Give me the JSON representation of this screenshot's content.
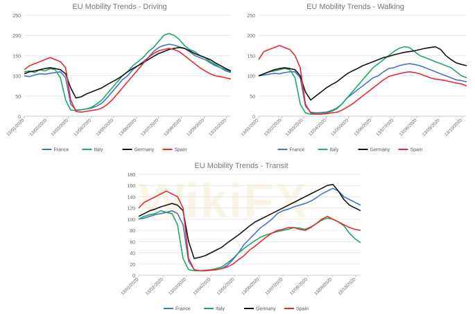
{
  "watermark": "WikiFX",
  "chart_data": [
    {
      "type": "line",
      "title": "EU Mobility Trends - Driving",
      "x": [
        "13/01/2020",
        "20/01/2020",
        "27/01/2020",
        "03/02/2020",
        "10/02/2020",
        "17/02/2020",
        "24/02/2020",
        "02/03/2020",
        "09/03/2020",
        "16/03/2020",
        "23/03/2020",
        "30/03/2020",
        "06/04/2020",
        "13/04/2020",
        "20/04/2020",
        "27/04/2020",
        "04/05/2020",
        "11/05/2020",
        "18/05/2020",
        "25/05/2020",
        "01/06/2020",
        "08/06/2020",
        "15/06/2020",
        "22/06/2020",
        "29/06/2020",
        "06/07/2020",
        "13/07/2020",
        "20/07/2020",
        "27/07/2020",
        "03/08/2020",
        "10/08/2020",
        "17/08/2020",
        "24/08/2020",
        "31/08/2020",
        "07/09/2020",
        "14/09/2020",
        "21/09/2020",
        "28/09/2020",
        "05/10/2020",
        "12/10/2020",
        "19/10/2020"
      ],
      "xlim": [
        "13/01/2020",
        "19/10/2020"
      ],
      "xticks": [
        "13/01/2020",
        "13/02/2020",
        "13/03/2020",
        "13/04/2020",
        "13/05/2020",
        "13/06/2020",
        "13/07/2020",
        "13/08/2020",
        "13/09/2020",
        "13/10/2020"
      ],
      "ylim": [
        0,
        250
      ],
      "yticks": [
        0,
        50,
        100,
        150,
        200,
        250
      ],
      "grid": true,
      "legend": "bottom",
      "series": [
        {
          "name": "France",
          "color": "#4472c4",
          "values": [
            100,
            98,
            102,
            105,
            104,
            106,
            108,
            110,
            95,
            30,
            15,
            16,
            18,
            20,
            25,
            32,
            45,
            60,
            75,
            90,
            100,
            115,
            125,
            135,
            145,
            160,
            170,
            175,
            178,
            176,
            172,
            168,
            160,
            150,
            145,
            140,
            132,
            125,
            120,
            112,
            108
          ]
        },
        {
          "name": "Italy",
          "color": "#1aa866",
          "values": [
            110,
            112,
            108,
            115,
            112,
            118,
            115,
            95,
            40,
            15,
            14,
            16,
            18,
            22,
            30,
            40,
            55,
            70,
            85,
            100,
            110,
            125,
            135,
            145,
            160,
            170,
            185,
            200,
            205,
            200,
            190,
            175,
            165,
            160,
            150,
            145,
            135,
            128,
            120,
            115,
            110
          ]
        },
        {
          "name": "Germany",
          "color": "#111111",
          "values": [
            105,
            110,
            112,
            115,
            118,
            120,
            118,
            115,
            105,
            70,
            45,
            48,
            55,
            60,
            65,
            70,
            78,
            85,
            92,
            100,
            110,
            118,
            125,
            132,
            140,
            148,
            155,
            160,
            165,
            168,
            170,
            168,
            162,
            155,
            150,
            145,
            140,
            132,
            125,
            118,
            112
          ]
        },
        {
          "name": "Spain",
          "color": "#e8282e",
          "values": [
            115,
            125,
            130,
            135,
            140,
            145,
            140,
            135,
            120,
            40,
            12,
            10,
            12,
            14,
            16,
            20,
            28,
            40,
            55,
            70,
            85,
            100,
            115,
            130,
            145,
            155,
            162,
            165,
            168,
            165,
            160,
            150,
            140,
            130,
            120,
            112,
            105,
            100,
            98,
            95,
            92
          ]
        }
      ]
    },
    {
      "type": "line",
      "title": "EU Mobility Trends - Walking",
      "x": [
        "13/01/2020",
        "20/01/2020",
        "27/01/2020",
        "03/02/2020",
        "10/02/2020",
        "17/02/2020",
        "24/02/2020",
        "02/03/2020",
        "09/03/2020",
        "16/03/2020",
        "23/03/2020",
        "30/03/2020",
        "06/04/2020",
        "13/04/2020",
        "20/04/2020",
        "27/04/2020",
        "04/05/2020",
        "11/05/2020",
        "18/05/2020",
        "25/05/2020",
        "01/06/2020",
        "08/06/2020",
        "15/06/2020",
        "22/06/2020",
        "29/06/2020",
        "06/07/2020",
        "13/07/2020",
        "20/07/2020",
        "27/07/2020",
        "03/08/2020",
        "10/08/2020",
        "17/08/2020",
        "24/08/2020",
        "31/08/2020",
        "07/09/2020",
        "14/09/2020",
        "21/09/2020",
        "28/09/2020",
        "05/10/2020",
        "12/10/2020",
        "19/10/2020"
      ],
      "xlim": [
        "13/01/2020",
        "19/10/2020"
      ],
      "xticks": [
        "13/01/2020",
        "13/02/2020",
        "13/03/2020",
        "13/04/2020",
        "13/05/2020",
        "13/06/2020",
        "13/07/2020",
        "13/08/2020",
        "13/09/2020",
        "13/10/2020"
      ],
      "ylim": [
        0,
        250
      ],
      "yticks": [
        0,
        50,
        100,
        150,
        200,
        250
      ],
      "grid": true,
      "legend": "bottom",
      "series": [
        {
          "name": "France",
          "color": "#4472c4",
          "values": [
            100,
            102,
            104,
            106,
            105,
            108,
            110,
            110,
            95,
            25,
            10,
            8,
            9,
            10,
            14,
            20,
            30,
            45,
            55,
            65,
            75,
            85,
            95,
            100,
            110,
            118,
            120,
            125,
            128,
            130,
            128,
            125,
            120,
            115,
            110,
            105,
            100,
            95,
            90,
            88,
            85
          ]
        },
        {
          "name": "Italy",
          "color": "#1aa866",
          "values": [
            100,
            105,
            110,
            112,
            115,
            118,
            115,
            95,
            30,
            8,
            5,
            5,
            6,
            8,
            12,
            18,
            30,
            45,
            60,
            75,
            90,
            105,
            120,
            130,
            140,
            150,
            160,
            168,
            172,
            170,
            160,
            150,
            145,
            140,
            135,
            130,
            125,
            120,
            110,
            100,
            95
          ]
        },
        {
          "name": "Germany",
          "color": "#111111",
          "values": [
            100,
            105,
            110,
            115,
            118,
            120,
            118,
            115,
            100,
            60,
            40,
            50,
            60,
            70,
            78,
            85,
            95,
            105,
            112,
            118,
            125,
            130,
            135,
            140,
            145,
            148,
            152,
            155,
            158,
            160,
            162,
            165,
            168,
            170,
            172,
            165,
            150,
            140,
            132,
            128,
            125
          ]
        },
        {
          "name": "Spain",
          "color": "#e8282e",
          "values": [
            140,
            160,
            165,
            170,
            175,
            170,
            165,
            150,
            120,
            30,
            8,
            5,
            5,
            6,
            8,
            10,
            15,
            22,
            30,
            40,
            50,
            60,
            70,
            80,
            90,
            98,
            102,
            105,
            108,
            110,
            108,
            105,
            100,
            95,
            92,
            90,
            88,
            85,
            82,
            80,
            75
          ]
        }
      ]
    },
    {
      "type": "line",
      "title": "EU Mobility Trends - Transit",
      "x": [
        "13/01/2020",
        "20/01/2020",
        "27/01/2020",
        "03/02/2020",
        "10/02/2020",
        "17/02/2020",
        "24/02/2020",
        "02/03/2020",
        "09/03/2020",
        "16/03/2020",
        "23/03/2020",
        "30/03/2020",
        "06/04/2020",
        "13/04/2020",
        "20/04/2020",
        "27/04/2020",
        "04/05/2020",
        "11/05/2020",
        "18/05/2020",
        "25/05/2020",
        "01/06/2020",
        "08/06/2020",
        "15/06/2020",
        "22/06/2020",
        "29/06/2020",
        "06/07/2020",
        "13/07/2020",
        "20/07/2020",
        "27/07/2020",
        "03/08/2020",
        "10/08/2020",
        "17/08/2020",
        "24/08/2020",
        "31/08/2020",
        "07/09/2020",
        "14/09/2020",
        "21/09/2020",
        "28/09/2020",
        "05/10/2020",
        "12/10/2020",
        "19/10/2020"
      ],
      "xlim": [
        "13/01/2020",
        "19/10/2020"
      ],
      "xticks": [
        "13/01/2020",
        "13/02/2020",
        "13/03/2020",
        "13/04/2020",
        "13/05/2020",
        "13/06/2020",
        "13/07/2020",
        "13/08/2020",
        "13/09/2020",
        "13/10/2020"
      ],
      "ylim": [
        0,
        180
      ],
      "yticks": [
        0,
        20,
        40,
        60,
        80,
        100,
        120,
        140,
        160,
        180
      ],
      "grid": true,
      "legend": "bottom",
      "series": [
        {
          "name": "France",
          "color": "#4472c4",
          "values": [
            100,
            102,
            105,
            108,
            110,
            112,
            115,
            110,
            90,
            25,
            10,
            8,
            8,
            9,
            10,
            12,
            18,
            28,
            40,
            55,
            65,
            75,
            85,
            92,
            100,
            110,
            115,
            118,
            122,
            125,
            128,
            132,
            138,
            145,
            150,
            155,
            150,
            140,
            135,
            130,
            125
          ]
        },
        {
          "name": "Italy",
          "color": "#1aa866",
          "values": [
            100,
            105,
            108,
            110,
            115,
            112,
            110,
            90,
            30,
            10,
            8,
            8,
            9,
            10,
            12,
            15,
            22,
            30,
            40,
            48,
            55,
            62,
            68,
            72,
            75,
            78,
            80,
            82,
            85,
            84,
            82,
            86,
            92,
            98,
            102,
            100,
            95,
            88,
            75,
            65,
            58
          ]
        },
        {
          "name": "Germany",
          "color": "#111111",
          "values": [
            105,
            110,
            115,
            118,
            122,
            125,
            128,
            125,
            115,
            60,
            30,
            32,
            35,
            40,
            45,
            50,
            58,
            65,
            72,
            80,
            88,
            95,
            100,
            105,
            110,
            115,
            120,
            125,
            130,
            135,
            140,
            145,
            150,
            155,
            160,
            162,
            150,
            135,
            125,
            120,
            115
          ]
        },
        {
          "name": "Spain",
          "color": "#e8282e",
          "values": [
            120,
            130,
            135,
            140,
            145,
            150,
            145,
            140,
            120,
            30,
            10,
            8,
            8,
            9,
            10,
            12,
            15,
            20,
            28,
            35,
            45,
            52,
            60,
            68,
            75,
            80,
            82,
            85,
            85,
            82,
            80,
            85,
            92,
            100,
            105,
            100,
            95,
            90,
            85,
            82,
            80
          ]
        }
      ]
    }
  ]
}
